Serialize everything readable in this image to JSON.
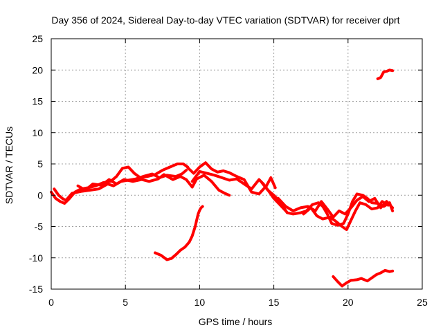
{
  "chart_data": {
    "type": "line",
    "title": "Day 356 of 2024, Sidereal Day-to-day VTEC variation (SDTVAR) for receiver dprt",
    "xlabel": "GPS time / hours",
    "ylabel": "SDTVAR / TECUs",
    "xlim": [
      0,
      25
    ],
    "ylim": [
      -15,
      25
    ],
    "xticks": [
      0,
      5,
      10,
      15,
      20,
      25
    ],
    "yticks": [
      -15,
      -10,
      -5,
      0,
      5,
      10,
      15,
      20,
      25
    ],
    "grid": true,
    "legend": "none",
    "series_color": "#ff0000",
    "series": [
      {
        "name": "main-trace-a",
        "points": [
          [
            0.0,
            0.5
          ],
          [
            0.3,
            -0.5
          ],
          [
            0.6,
            -1.0
          ],
          [
            0.9,
            -1.3
          ],
          [
            1.2,
            -0.6
          ],
          [
            1.6,
            0.5
          ],
          [
            2.0,
            1.0
          ],
          [
            2.5,
            1.2
          ],
          [
            3.0,
            1.5
          ],
          [
            3.5,
            2.0
          ],
          [
            4.0,
            2.2
          ],
          [
            4.4,
            3.0
          ],
          [
            4.8,
            4.3
          ],
          [
            5.2,
            4.5
          ],
          [
            5.6,
            3.5
          ],
          [
            6.0,
            2.8
          ],
          [
            6.5,
            3.0
          ],
          [
            7.0,
            3.3
          ],
          [
            7.5,
            4.0
          ],
          [
            8.0,
            4.5
          ],
          [
            8.5,
            5.0
          ],
          [
            8.9,
            5.0
          ],
          [
            9.2,
            4.5
          ]
        ]
      },
      {
        "name": "main-trace-b",
        "points": [
          [
            0.2,
            1.0
          ],
          [
            0.5,
            0.0
          ],
          [
            0.8,
            -0.6
          ],
          [
            1.0,
            -0.8
          ],
          [
            1.4,
            0.3
          ],
          [
            2.0,
            0.6
          ],
          [
            2.6,
            0.8
          ],
          [
            3.2,
            1.0
          ],
          [
            3.8,
            1.8
          ],
          [
            4.2,
            1.5
          ],
          [
            4.7,
            2.2
          ],
          [
            5.2,
            2.4
          ],
          [
            5.7,
            2.6
          ],
          [
            6.2,
            3.0
          ],
          [
            6.8,
            3.4
          ],
          [
            7.3,
            2.8
          ],
          [
            7.8,
            3.2
          ],
          [
            8.4,
            3.0
          ],
          [
            8.8,
            3.4
          ],
          [
            9.1,
            4.0
          ]
        ]
      },
      {
        "name": "main-trace-c",
        "points": [
          [
            1.8,
            1.5
          ],
          [
            2.3,
            0.8
          ],
          [
            2.8,
            1.8
          ],
          [
            3.4,
            1.6
          ],
          [
            3.9,
            2.5
          ],
          [
            4.4,
            1.8
          ],
          [
            4.9,
            2.5
          ],
          [
            5.5,
            2.2
          ],
          [
            6.1,
            2.5
          ],
          [
            6.6,
            2.2
          ],
          [
            7.2,
            2.6
          ],
          [
            7.6,
            3.3
          ],
          [
            8.2,
            2.5
          ],
          [
            8.7,
            3.0
          ],
          [
            9.1,
            2.5
          ],
          [
            9.5,
            1.3
          ],
          [
            9.8,
            2.6
          ],
          [
            10.3,
            3.2
          ],
          [
            10.8,
            2.2
          ],
          [
            11.3,
            0.8
          ],
          [
            11.7,
            0.3
          ],
          [
            12.0,
            0.0
          ]
        ]
      },
      {
        "name": "main-trace-d",
        "points": [
          [
            9.2,
            4.4
          ],
          [
            9.6,
            3.5
          ],
          [
            10.0,
            4.5
          ],
          [
            10.4,
            5.2
          ],
          [
            10.8,
            4.2
          ],
          [
            11.2,
            3.7
          ],
          [
            11.6,
            3.9
          ],
          [
            12.0,
            3.6
          ],
          [
            12.5,
            3.0
          ],
          [
            13.0,
            2.5
          ],
          [
            13.5,
            0.5
          ],
          [
            14.0,
            0.2
          ],
          [
            14.5,
            1.5
          ],
          [
            14.8,
            2.8
          ],
          [
            15.1,
            1.2
          ]
        ]
      },
      {
        "name": "main-trace-e",
        "points": [
          [
            9.5,
            2.2
          ],
          [
            10.0,
            3.8
          ],
          [
            10.5,
            3.5
          ],
          [
            11.0,
            3.2
          ],
          [
            11.5,
            2.8
          ],
          [
            12.0,
            2.4
          ],
          [
            12.5,
            2.6
          ],
          [
            13.0,
            1.8
          ],
          [
            13.5,
            1.0
          ],
          [
            14.0,
            2.5
          ],
          [
            14.3,
            1.8
          ],
          [
            14.7,
            0.5
          ],
          [
            15.0,
            -0.5
          ],
          [
            15.4,
            -1.5
          ],
          [
            15.8,
            -2.5
          ]
        ]
      },
      {
        "name": "main-trace-f",
        "points": [
          [
            14.2,
            2.0
          ],
          [
            14.6,
            0.8
          ],
          [
            15.0,
            0.0
          ],
          [
            15.4,
            -1.0
          ],
          [
            15.9,
            -2.8
          ],
          [
            16.3,
            -3.0
          ],
          [
            16.8,
            -2.8
          ],
          [
            17.2,
            -2.5
          ],
          [
            17.6,
            -1.5
          ],
          [
            18.0,
            -1.2
          ],
          [
            18.3,
            -1.8
          ],
          [
            18.6,
            -3.0
          ],
          [
            18.9,
            -4.5
          ],
          [
            19.3,
            -4.8
          ],
          [
            19.7,
            -4.5
          ],
          [
            20.0,
            -3.0
          ],
          [
            20.3,
            -1.0
          ],
          [
            20.6,
            0.2
          ],
          [
            21.0,
            0.0
          ],
          [
            21.3,
            -0.5
          ],
          [
            21.6,
            -1.2
          ],
          [
            22.0,
            -1.3
          ],
          [
            22.4,
            -1.8
          ],
          [
            22.8,
            -1.2
          ],
          [
            23.0,
            -2.5
          ]
        ]
      },
      {
        "name": "main-trace-g",
        "points": [
          [
            15.3,
            -0.5
          ],
          [
            15.8,
            -1.8
          ],
          [
            16.3,
            -2.5
          ],
          [
            16.8,
            -2.0
          ],
          [
            17.3,
            -1.8
          ],
          [
            17.8,
            -2.5
          ],
          [
            18.2,
            -1.0
          ],
          [
            18.6,
            -2.2
          ],
          [
            19.0,
            -3.5
          ],
          [
            19.4,
            -2.5
          ],
          [
            19.8,
            -3.0
          ],
          [
            20.2,
            -2.0
          ],
          [
            20.6,
            -0.8
          ],
          [
            21.0,
            -0.2
          ],
          [
            21.4,
            -1.0
          ],
          [
            21.8,
            -0.5
          ],
          [
            22.2,
            -2.0
          ],
          [
            22.6,
            -1.0
          ],
          [
            23.0,
            -2.0
          ]
        ]
      },
      {
        "name": "main-trace-h",
        "points": [
          [
            17.0,
            -3.0
          ],
          [
            17.5,
            -2.0
          ],
          [
            17.9,
            -3.3
          ],
          [
            18.3,
            -3.8
          ],
          [
            18.8,
            -3.5
          ],
          [
            19.2,
            -4.2
          ],
          [
            19.6,
            -5.0
          ],
          [
            19.9,
            -5.5
          ],
          [
            20.2,
            -4.0
          ],
          [
            20.5,
            -2.5
          ],
          [
            20.8,
            -1.2
          ],
          [
            21.2,
            -1.5
          ],
          [
            21.6,
            -2.2
          ],
          [
            22.0,
            -2.0
          ],
          [
            22.3,
            -1.0
          ],
          [
            22.7,
            -1.6
          ]
        ]
      },
      {
        "name": "dip-recovery-trace",
        "points": [
          [
            7.0,
            -9.2
          ],
          [
            7.4,
            -9.6
          ],
          [
            7.8,
            -10.3
          ],
          [
            8.1,
            -10.1
          ],
          [
            8.4,
            -9.5
          ],
          [
            8.7,
            -8.8
          ],
          [
            9.0,
            -8.3
          ],
          [
            9.3,
            -7.5
          ],
          [
            9.5,
            -6.5
          ],
          [
            9.7,
            -5.0
          ],
          [
            9.8,
            -4.0
          ],
          [
            9.9,
            -3.0
          ],
          [
            10.0,
            -2.4
          ],
          [
            10.1,
            -2.0
          ],
          [
            10.2,
            -1.8
          ]
        ]
      },
      {
        "name": "late-low-trace",
        "points": [
          [
            19.0,
            -13.0
          ],
          [
            19.3,
            -13.8
          ],
          [
            19.6,
            -14.5
          ],
          [
            19.9,
            -14.0
          ],
          [
            20.2,
            -13.6
          ],
          [
            20.6,
            -13.5
          ],
          [
            20.9,
            -13.3
          ],
          [
            21.3,
            -13.7
          ],
          [
            21.6,
            -13.2
          ],
          [
            21.9,
            -12.7
          ],
          [
            22.2,
            -12.4
          ],
          [
            22.5,
            -12.0
          ],
          [
            22.8,
            -12.2
          ],
          [
            23.0,
            -12.1
          ]
        ]
      },
      {
        "name": "late-high-trace",
        "points": [
          [
            22.0,
            18.6
          ],
          [
            22.2,
            18.8
          ],
          [
            22.4,
            19.7
          ],
          [
            22.6,
            19.8
          ],
          [
            22.8,
            20.0
          ],
          [
            23.0,
            19.9
          ]
        ]
      }
    ]
  }
}
